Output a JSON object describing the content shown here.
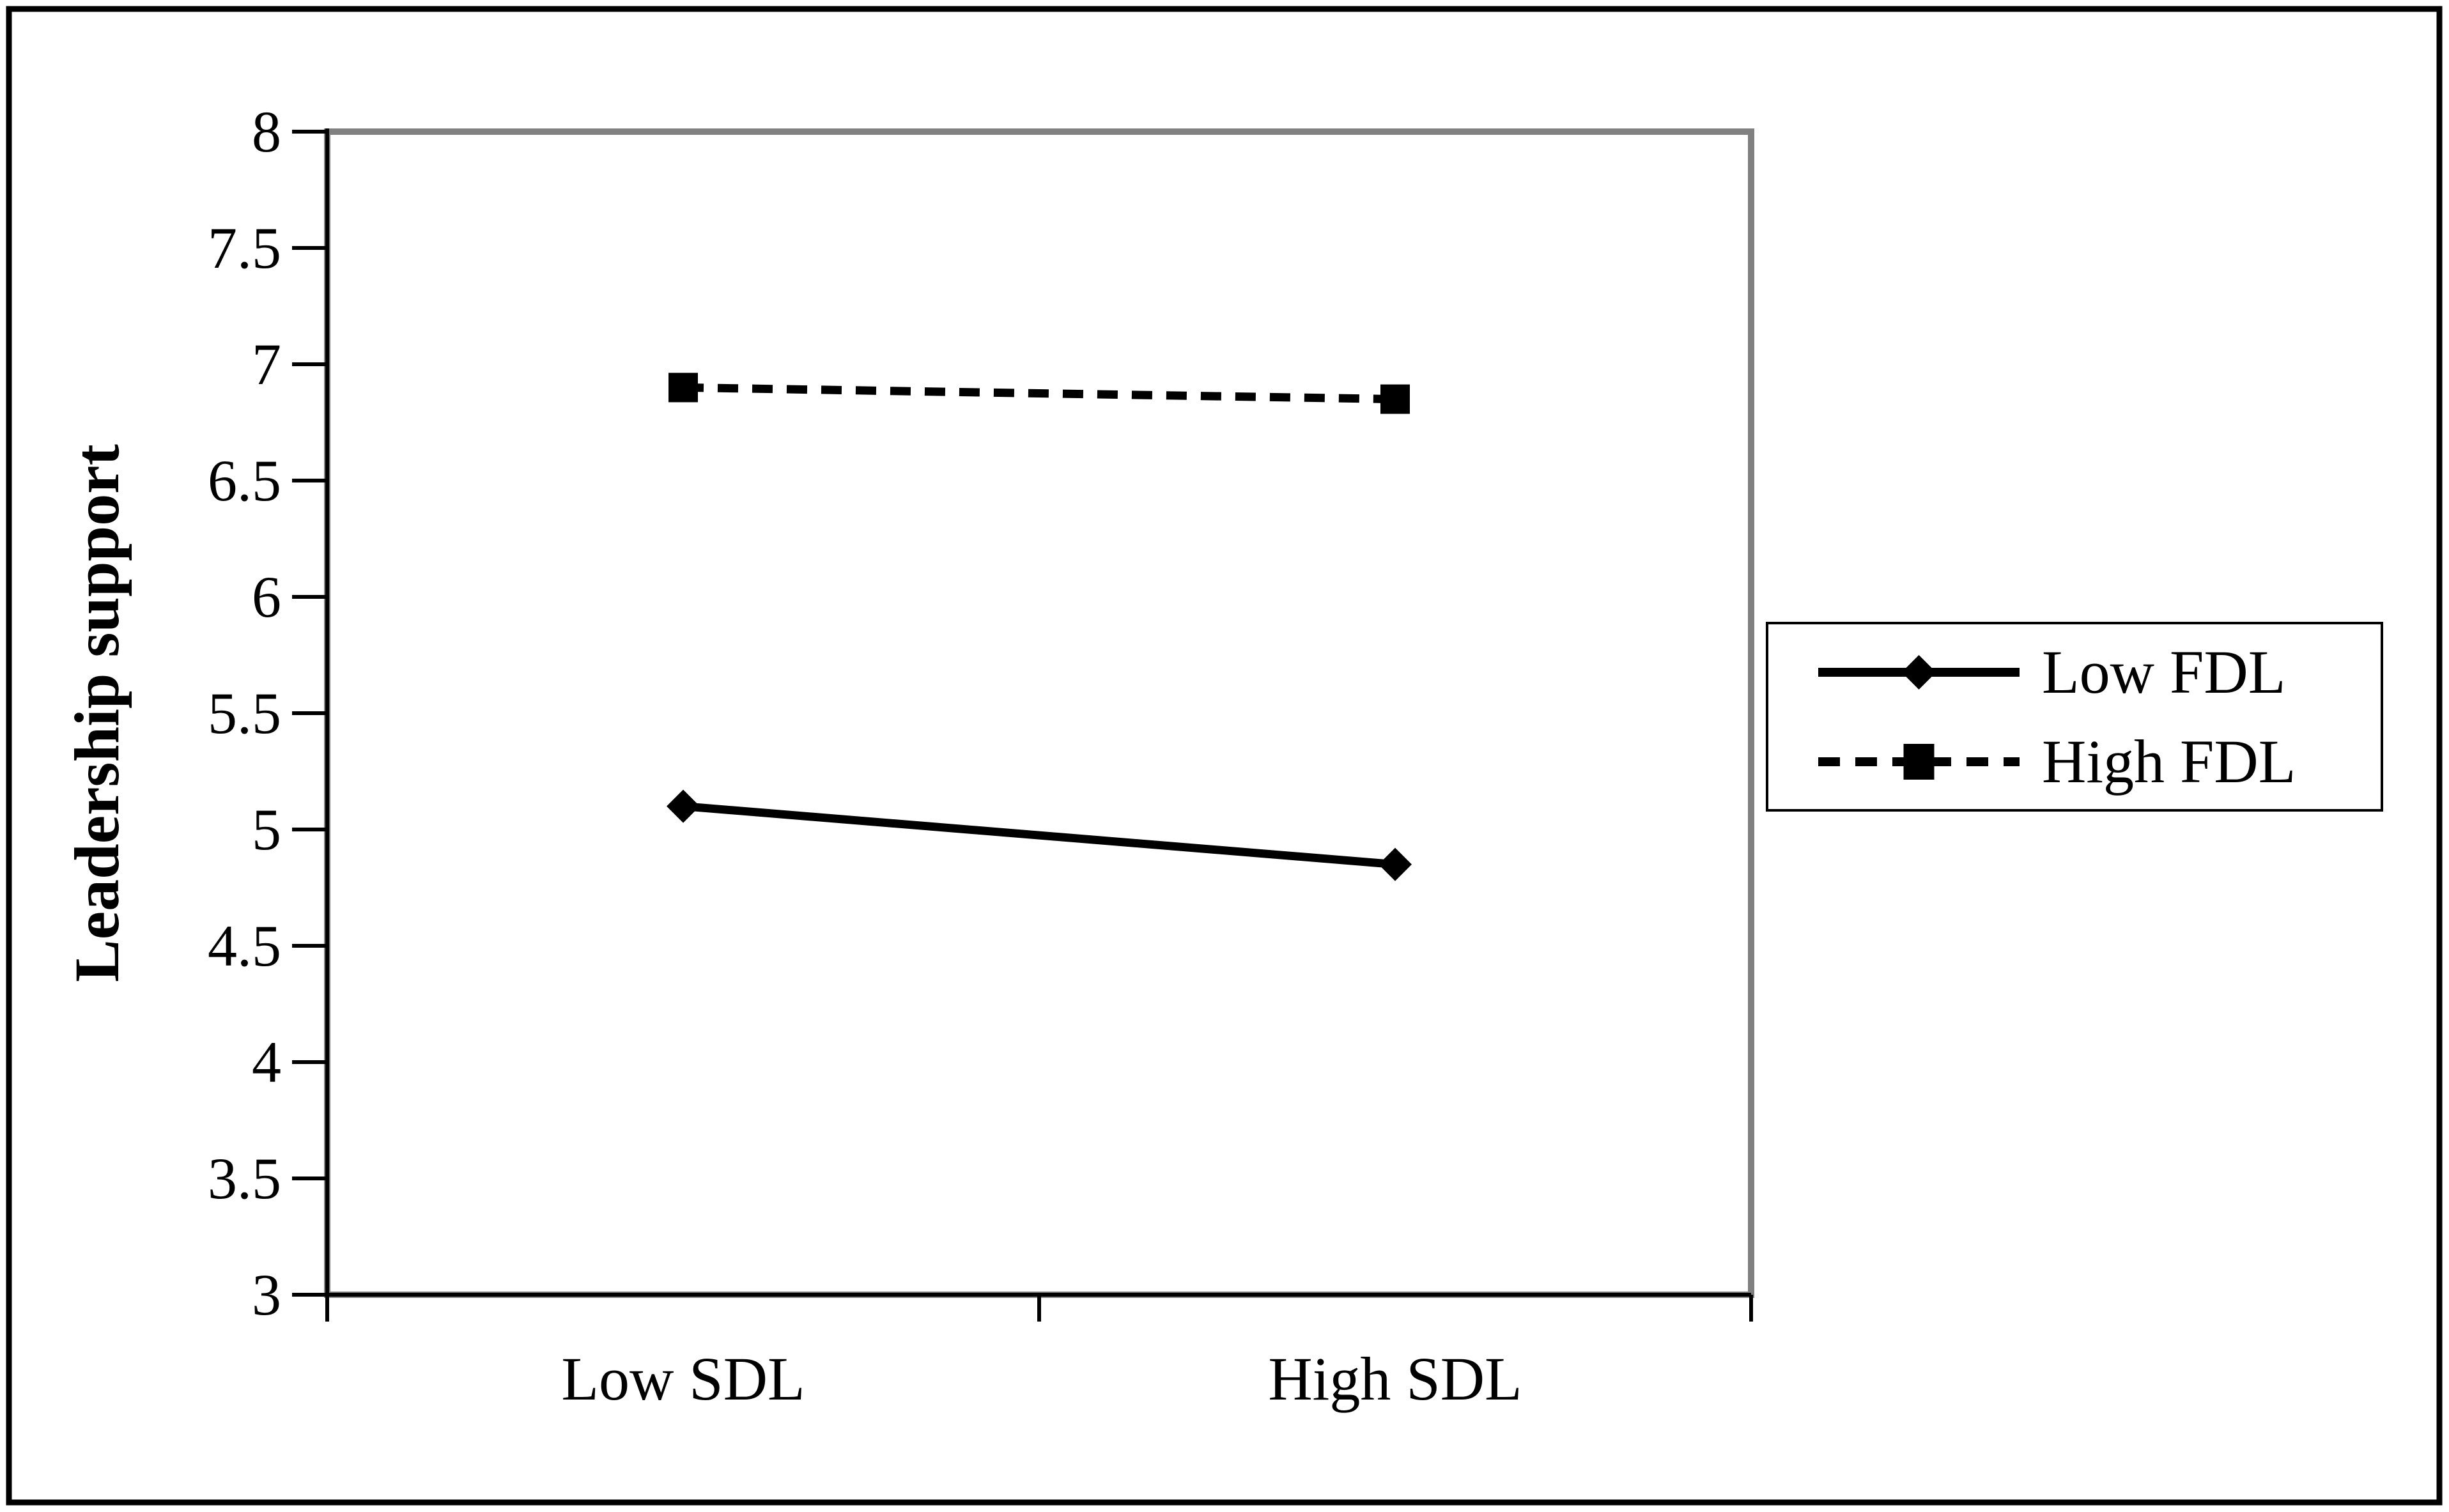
{
  "figure": {
    "background_color": "#ffffff",
    "outer_border_color": "#000000",
    "plot_frame_color": "#808080",
    "axis_color": "#000000",
    "series_color": "#000000"
  },
  "y_axis": {
    "title": "Leadership support"
  },
  "x_axis": {
    "categories": [
      "Low SDL",
      "High SDL"
    ]
  },
  "legend": {
    "items": [
      {
        "label": "Low FDL",
        "marker": "diamond-icon",
        "line_style": "solid"
      },
      {
        "label": "High FDL",
        "marker": "square-icon",
        "line_style": "dashed"
      }
    ]
  },
  "chart_data": {
    "type": "line",
    "title": "",
    "xlabel": "",
    "ylabel": "Leadership support",
    "categories": [
      "Low SDL",
      "High SDL"
    ],
    "series": [
      {
        "name": "Low FDL",
        "values": [
          5.1,
          4.85
        ],
        "line_style": "solid",
        "marker": "diamond",
        "color": "#000000"
      },
      {
        "name": "High FDL",
        "values": [
          6.9,
          6.85
        ],
        "line_style": "dashed",
        "marker": "square",
        "color": "#000000"
      }
    ],
    "ylim": [
      3,
      8
    ],
    "ytick_step": 0.5,
    "ytick_labels": [
      "3",
      "3.5",
      "4",
      "4.5",
      "5",
      "5.5",
      "6",
      "6.5",
      "7",
      "7.5",
      "8"
    ],
    "grid": false,
    "legend_position": "right-outside"
  }
}
